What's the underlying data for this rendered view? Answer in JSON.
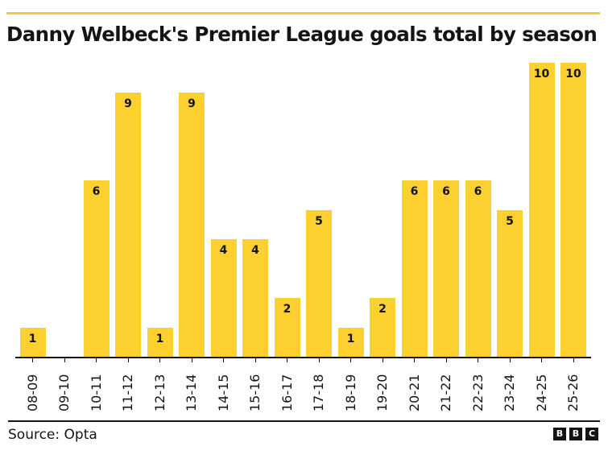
{
  "header": {
    "title": "Danny Welbeck's Premier League goals total by season",
    "accent_color": "#f2cd36"
  },
  "footer": {
    "source": "Source: Opta",
    "logo_letters": [
      "B",
      "B",
      "C"
    ]
  },
  "colors": {
    "bar": "#fcd12f",
    "text": "#141414"
  },
  "chart_data": {
    "type": "bar",
    "title": "Danny Welbeck's Premier League goals total by season",
    "xlabel": "",
    "ylabel": "",
    "categories": [
      "08-09",
      "09-10",
      "10-11",
      "11-12",
      "12-13",
      "13-14",
      "14-15",
      "15-16",
      "16-17",
      "17-18",
      "18-19",
      "19-20",
      "20-21",
      "21-22",
      "22-23",
      "23-24",
      "24-25",
      "25-26"
    ],
    "values": [
      1,
      0,
      6,
      9,
      1,
      9,
      4,
      4,
      2,
      5,
      1,
      2,
      6,
      6,
      6,
      5,
      10,
      10
    ],
    "ylim": [
      0,
      10
    ],
    "grid": false,
    "legend": null,
    "data_labels": true
  }
}
